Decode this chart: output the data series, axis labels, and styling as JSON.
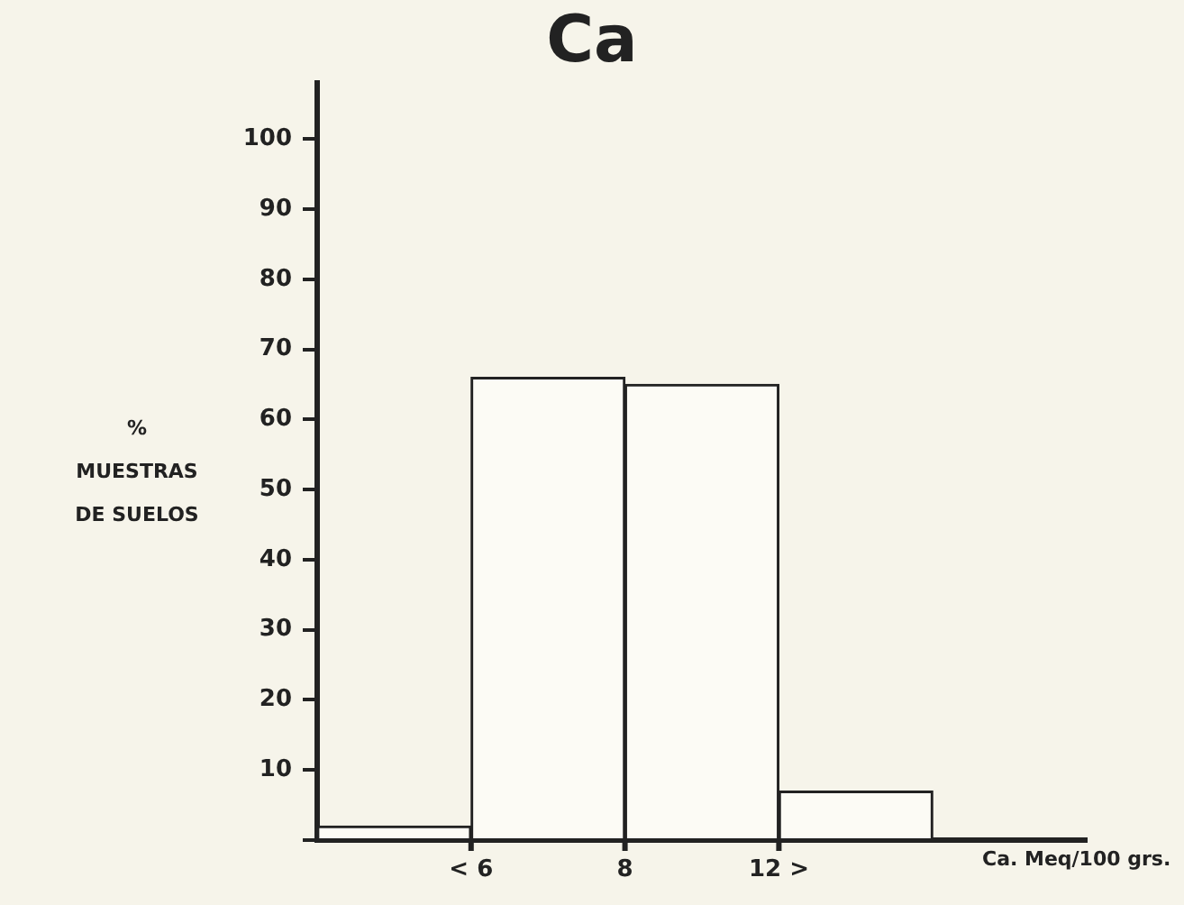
{
  "chart_data": {
    "type": "bar",
    "title": "Ca",
    "xlabel": "Ca. Meq/100 grs.",
    "ylabel": "% MUESTRAS DE SUELOS",
    "categories": [
      null,
      null,
      null,
      null,
      null
    ],
    "values": [
      2,
      66,
      65,
      7,
      null
    ],
    "color": "#fcfbf5",
    "annotations": [
      "< 6",
      "8",
      "12 >"
    ],
    "ylim": [
      0,
      108
    ],
    "yticks": [
      {
        "value": 0,
        "label": null
      },
      10,
      20,
      30,
      40,
      50,
      60,
      70,
      80,
      90,
      100
    ],
    "grid": false,
    "legend": false
  }
}
